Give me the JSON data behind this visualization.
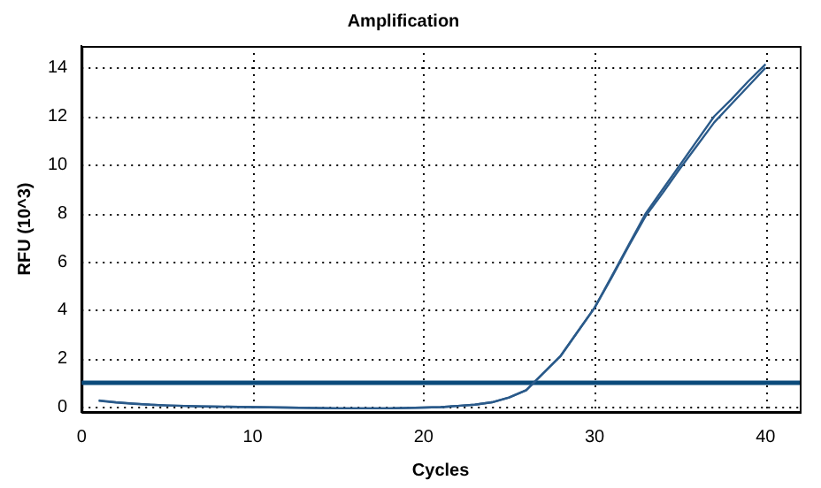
{
  "chart_data": {
    "type": "line",
    "title": "Amplification",
    "xlabel": "Cycles",
    "ylabel": "RFU (10^3)",
    "x": [
      1,
      2,
      3,
      4,
      5,
      6,
      7,
      8,
      10,
      12,
      15,
      18,
      20,
      21,
      22,
      23,
      24,
      25,
      26,
      27,
      28,
      29,
      30,
      31,
      32,
      33,
      34,
      35,
      36,
      37,
      38,
      39,
      40
    ],
    "series": [
      {
        "color": "#2a5a8a",
        "values": [
          0.28,
          0.2,
          0.15,
          0.1,
          0.07,
          0.05,
          0.03,
          0.02,
          0,
          -0.02,
          -0.05,
          -0.05,
          -0.02,
          0,
          0.05,
          0.1,
          0.2,
          0.4,
          0.7,
          1.4,
          2.1,
          3.1,
          4.1,
          5.4,
          6.7,
          8,
          9,
          10,
          11,
          12,
          12.7,
          13.45,
          14.15
        ]
      },
      {
        "color": "#2a5a8a",
        "values": [
          0.26,
          0.19,
          0.14,
          0.1,
          0.07,
          0.05,
          0.03,
          0.02,
          0,
          -0.02,
          -0.05,
          -0.05,
          -0.02,
          0,
          0.05,
          0.1,
          0.2,
          0.4,
          0.7,
          1.4,
          2.1,
          3.1,
          4.1,
          5.35,
          6.65,
          7.9,
          8.85,
          9.85,
          10.8,
          11.75,
          12.5,
          13.25,
          14
        ]
      }
    ],
    "xlim": [
      0,
      42
    ],
    "xticks": [
      0,
      10,
      20,
      30,
      40
    ],
    "ylim": [
      -0.2,
      14.9
    ],
    "yticks": [
      0,
      2,
      4,
      6,
      8,
      10,
      12,
      14
    ],
    "ref_lines": [
      {
        "axis": "y",
        "value": 1,
        "color": "#0a4a7a"
      }
    ],
    "grid": true,
    "legend": false,
    "marker": "none",
    "line_style": "solid"
  }
}
